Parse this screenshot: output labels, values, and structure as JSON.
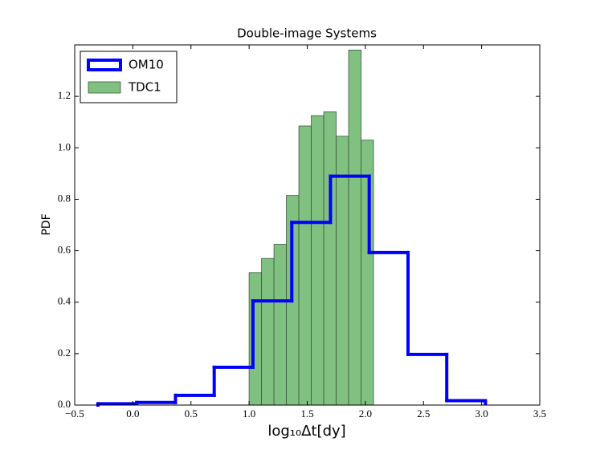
{
  "chart_data": {
    "type": "histogram",
    "title": "Double-image Systems",
    "xlabel": "log₁₀Δt[dy]",
    "ylabel": "PDF",
    "xlim": [
      -0.5,
      3.5
    ],
    "xticks": [
      {
        "value": -0.5,
        "label": "−0.5"
      },
      {
        "value": 0,
        "label": "0.0"
      },
      0.5,
      {
        "value": 1,
        "label": "1.0"
      },
      1.5,
      {
        "value": 2,
        "label": "2.0"
      },
      2.5,
      {
        "value": 3,
        "label": "3.0"
      },
      3.5
    ],
    "ylim": [
      0,
      1.4
    ],
    "yticks": [
      {
        "value": 0,
        "label": "0.0"
      },
      0.2,
      0.4,
      0.6,
      0.8,
      {
        "value": 1,
        "label": "1.0"
      },
      1.2
    ],
    "legend": "upper left",
    "series": [
      {
        "name": "TDC1",
        "histtype": "bar",
        "color": "#80c080",
        "bins": [
          1.0,
          1.107,
          1.214,
          1.321,
          1.428,
          1.535,
          1.642,
          1.749,
          1.856,
          1.963,
          2.07
        ],
        "values": [
          0.515,
          0.57,
          0.625,
          0.815,
          1.085,
          1.125,
          1.14,
          1.045,
          1.38,
          1.03
        ]
      },
      {
        "name": "OM10",
        "histtype": "step",
        "color": "#0000ff",
        "bins": [
          -0.3,
          0.033,
          0.367,
          0.7,
          1.033,
          1.367,
          1.7,
          2.033,
          2.367,
          2.7,
          3.033
        ],
        "values": [
          0.005,
          0.01,
          0.038,
          0.147,
          0.405,
          0.71,
          0.89,
          0.593,
          0.197,
          0.017
        ]
      }
    ]
  }
}
